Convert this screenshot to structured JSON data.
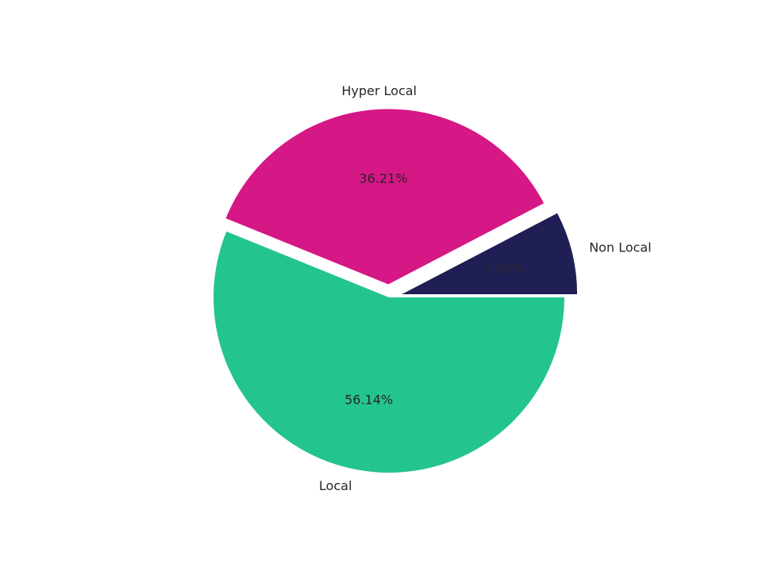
{
  "chart_data": {
    "type": "pie",
    "title": "",
    "start_angle_deg": 0,
    "direction": "counterclockwise",
    "slices": [
      {
        "label": "Non Local",
        "value": 7.65,
        "value_label": "7.65%",
        "color": "#1f1f55",
        "exploded": true
      },
      {
        "label": "Hyper Local",
        "value": 36.21,
        "value_label": "36.21%",
        "color": "#d61786",
        "exploded": true
      },
      {
        "label": "Local",
        "value": 56.14,
        "value_label": "56.14%",
        "color": "#24c490",
        "exploded": false
      }
    ]
  }
}
